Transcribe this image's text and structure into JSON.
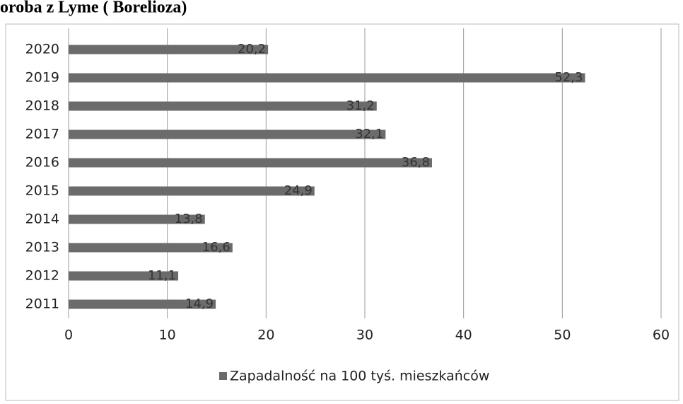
{
  "chart_data": {
    "type": "bar",
    "orientation": "horizontal",
    "title": "oroba z Lyme ( Borelioza)",
    "categories": [
      "2020",
      "2019",
      "2018",
      "2017",
      "2016",
      "2015",
      "2014",
      "2013",
      "2012",
      "2011"
    ],
    "series": [
      {
        "name": "Zapadalność na 100 tyś. mieszkańców",
        "color": "#6b6b6b",
        "values": [
          20.2,
          52.3,
          31.2,
          32.1,
          36.8,
          24.9,
          13.8,
          16.6,
          11.1,
          14.9
        ],
        "value_labels": [
          "20,2",
          "52,3",
          "31,2",
          "32,1",
          "36,8",
          "24,9",
          "13,8",
          "16,6",
          "11,1",
          "14,9"
        ]
      }
    ],
    "xlim": [
      0,
      60
    ],
    "xticks": [
      0,
      10,
      20,
      30,
      40,
      50,
      60
    ],
    "grid": true,
    "legend": "bottom"
  }
}
